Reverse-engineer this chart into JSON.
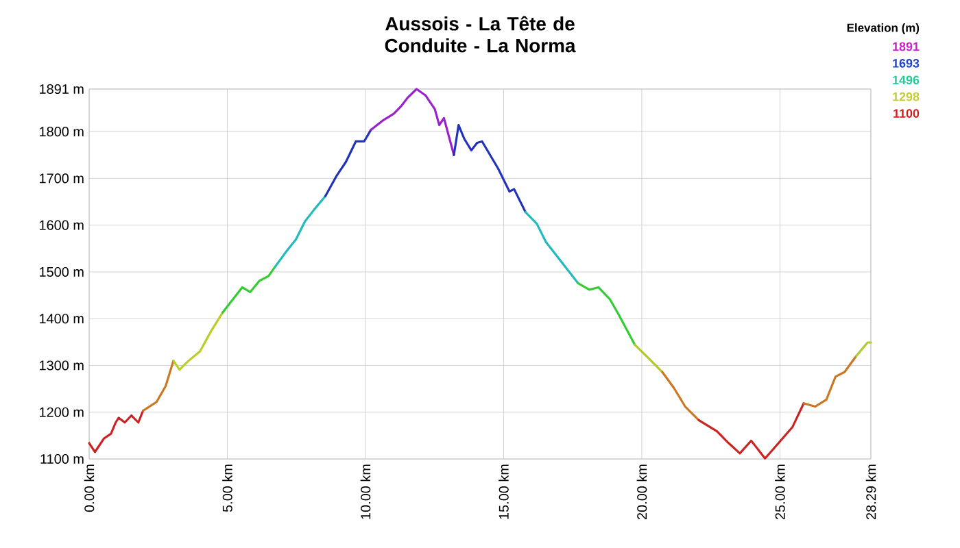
{
  "chart_data": {
    "type": "line",
    "title": "Aussois - La Tête de Conduite - La Norma",
    "legend_title": "Elevation (m)",
    "annotations": [
      "1891",
      "1693",
      "1496",
      "1298",
      "1100"
    ],
    "series": [
      {
        "color": "#cc2222",
        "x": [
          0,
          0.21,
          0.54,
          0.79,
          0.96,
          1.07,
          1.29,
          1.53,
          1.78,
          1.95
        ],
        "values": [
          1134,
          1115,
          1144,
          1154,
          1178,
          1188,
          1178,
          1193,
          1178,
          1203
        ]
      },
      {
        "color": "#cc7722",
        "x": [
          1.95,
          2.44,
          2.77,
          3.05
        ],
        "values": [
          1203,
          1222,
          1256,
          1310
        ]
      },
      {
        "color": "#bbcc22",
        "x": [
          3.05,
          3.27,
          3.6,
          4.01,
          4.42,
          4.83
        ],
        "values": [
          1310,
          1291,
          1310,
          1330,
          1374,
          1413
        ]
      },
      {
        "color": "#33cc33",
        "x": [
          4.83,
          5.08,
          5.54,
          5.83,
          6.16,
          6.49,
          6.73
        ],
        "values": [
          1413,
          1432,
          1467,
          1457,
          1481,
          1491,
          1511
        ]
      },
      {
        "color": "#22bbbb",
        "x": [
          6.73,
          7.15,
          7.48,
          7.81,
          8.14,
          8.55
        ],
        "values": [
          1511,
          1545,
          1569,
          1608,
          1633,
          1662
        ]
      },
      {
        "color": "#2233bb",
        "x": [
          8.55,
          8.96,
          9.29,
          9.65,
          9.95,
          10.2
        ],
        "values": [
          1662,
          1706,
          1735,
          1779,
          1779,
          1804
        ]
      },
      {
        "color": "#9922cc",
        "x": [
          10.2,
          10.61,
          11.02,
          11.27,
          11.52,
          11.85,
          12.18,
          12.51,
          12.67,
          12.84,
          13.2
        ],
        "values": [
          1804,
          1823,
          1838,
          1853,
          1872,
          1891,
          1877,
          1848,
          1814,
          1829,
          1750
        ]
      },
      {
        "color": "#2233bb",
        "x": [
          13.2,
          13.37,
          13.58,
          13.83,
          14.04,
          14.22,
          14.8,
          15.21,
          15.38,
          15.79
        ],
        "values": [
          1750,
          1814,
          1784,
          1760,
          1776,
          1779,
          1721,
          1672,
          1677,
          1628
        ]
      },
      {
        "color": "#22bbbb",
        "x": [
          15.79,
          16.2,
          16.53,
          17.11,
          17.69
        ],
        "values": [
          1628,
          1603,
          1564,
          1520,
          1476
        ]
      },
      {
        "color": "#33cc33",
        "x": [
          17.69,
          18.1,
          18.43,
          18.84,
          19.17,
          19.75
        ],
        "values": [
          1476,
          1462,
          1467,
          1442,
          1408,
          1344
        ]
      },
      {
        "color": "#b4c828",
        "x": [
          19.75,
          20.25,
          20.74
        ],
        "values": [
          1344,
          1315,
          1286
        ]
      },
      {
        "color": "#cc7722",
        "x": [
          20.74,
          21.16,
          21.57,
          22.06
        ],
        "values": [
          1286,
          1252,
          1212,
          1183
        ]
      },
      {
        "color": "#cc2222",
        "x": [
          22.06,
          22.72,
          23.14,
          23.55,
          23.96,
          24.46,
          24.95,
          25.45,
          25.86
        ],
        "values": [
          1183,
          1159,
          1134,
          1112,
          1139,
          1101,
          1134,
          1168,
          1219
        ]
      },
      {
        "color": "#cc7722",
        "x": [
          25.86,
          26.27,
          26.68,
          27.01,
          27.34,
          27.76
        ],
        "values": [
          1219,
          1212,
          1227,
          1276,
          1286,
          1320
        ]
      },
      {
        "color": "#aacc2e",
        "x": [
          27.76,
          28.17,
          28.29
        ],
        "values": [
          1320,
          1349,
          1349
        ]
      }
    ],
    "xlim": [
      0,
      28.29
    ],
    "ylim": [
      1100,
      1891
    ],
    "xticks": [
      {
        "value": 0,
        "label": "0.00 km"
      },
      {
        "value": 5,
        "label": "5.00 km"
      },
      {
        "value": 10,
        "label": "10.00 km"
      },
      {
        "value": 15,
        "label": "15.00 km"
      },
      {
        "value": 20,
        "label": "20.00 km"
      },
      {
        "value": 25,
        "label": "25.00 km"
      },
      {
        "value": 28.29,
        "label": "28.29 km"
      }
    ],
    "yticks": [
      {
        "value": 1100,
        "label": "1100 m"
      },
      {
        "value": 1200,
        "label": "1200 m"
      },
      {
        "value": 1300,
        "label": "1300 m"
      },
      {
        "value": 1400,
        "label": "1400 m"
      },
      {
        "value": 1500,
        "label": "1500 m"
      },
      {
        "value": 1600,
        "label": "1600 m"
      },
      {
        "value": 1700,
        "label": "1700 m"
      },
      {
        "value": 1800,
        "label": "1800 m"
      },
      {
        "value": 1891,
        "label": "1891 m"
      }
    ],
    "grid": true
  }
}
